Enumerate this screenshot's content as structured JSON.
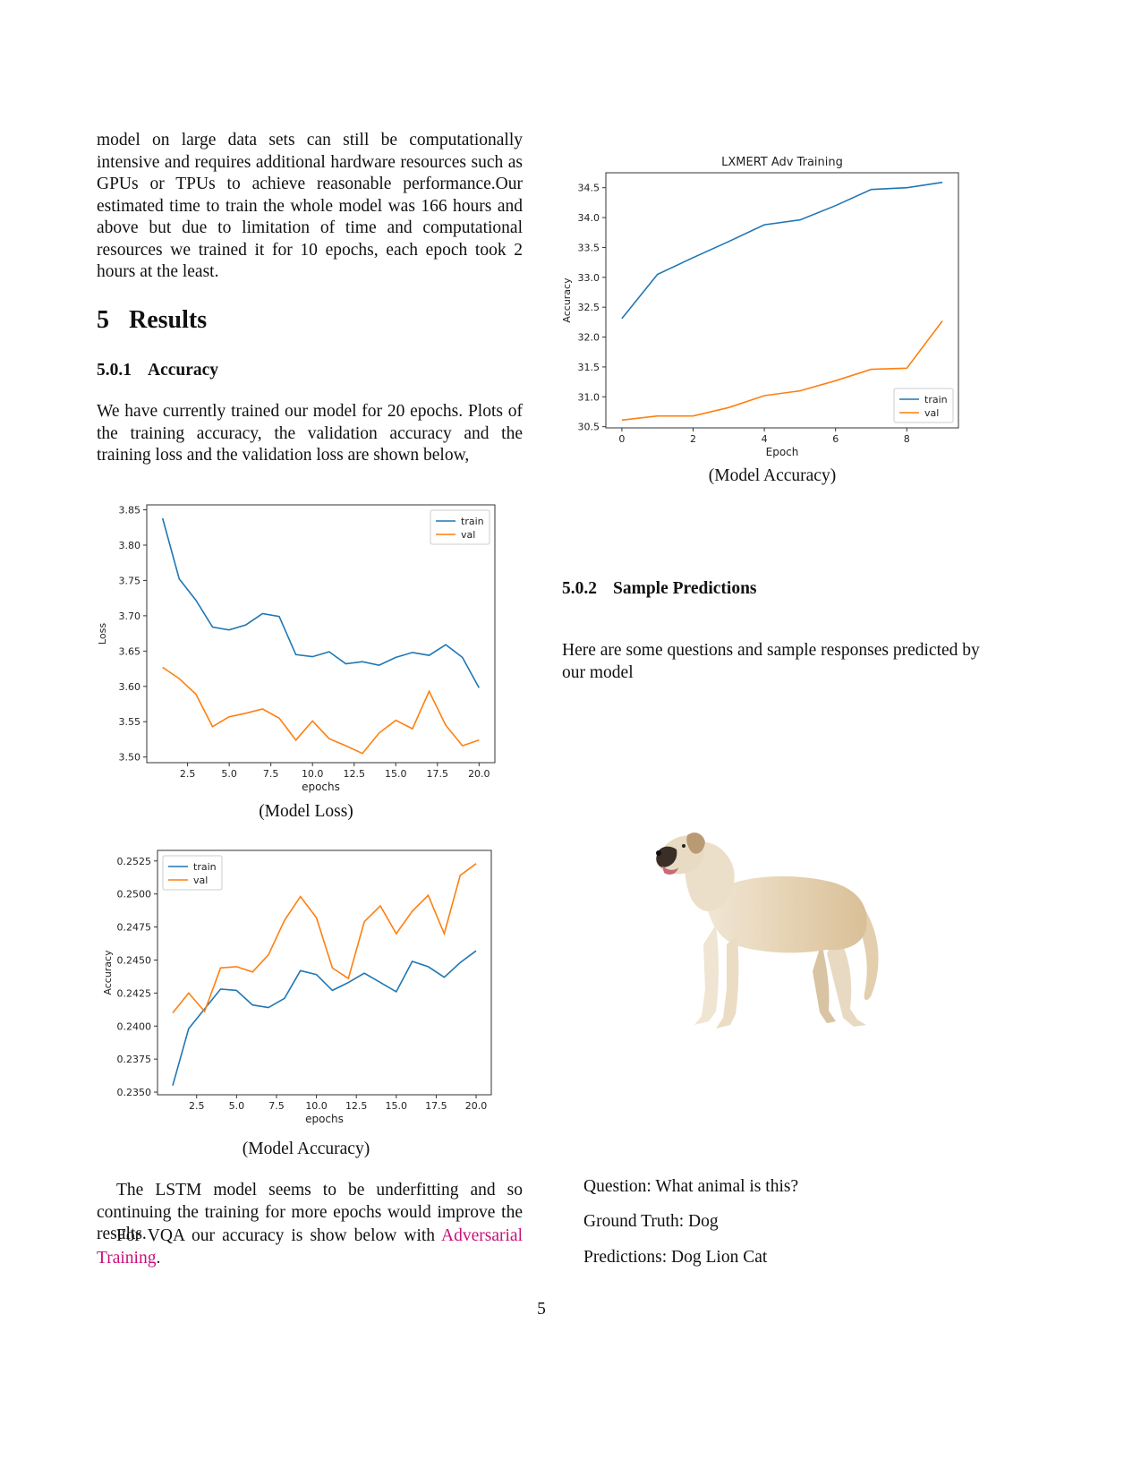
{
  "left": {
    "intro": "model on large data sets can still be computationally intensive and requires additional hardware resources such as GPUs or TPUs to achieve reasonable performance.Our estimated time to train the whole model was 166 hours and above but due to limitation of time and computational resources we trained it for 10 epochs, each epoch took 2 hours at the least.",
    "section_num": "5",
    "section_title": "Results",
    "sub1_num": "5.0.1",
    "sub1_title": "Accuracy",
    "p1": "We have currently trained our model for 20 epochs. Plots of the training accuracy, the validation accuracy and the training loss and the validation loss are shown below,",
    "cap_loss": "(Model Loss)",
    "cap_acc": "(Model Accuracy)",
    "p2": "The LSTM model seems to be underfitting and so continuing the training for more epochs would improve the results.",
    "p3_pre": "For VQA our accuracy is show below with ",
    "p3_link": "Adversarial Training",
    "p3_post": "."
  },
  "right": {
    "cap_lx": "(Model Accuracy)",
    "sub2_num": "5.0.2",
    "sub2_title": "Sample Predictions",
    "p4": "Here are some questions and sample responses predicted by our model",
    "question": "Question: What animal is this?",
    "ground_truth": "Ground Truth: Dog",
    "predictions": "Predictions: Dog Lion Cat"
  },
  "page_number": "5",
  "colors": {
    "train": "#1f77b4",
    "val": "#ff7f0e",
    "link": "#c8107a"
  },
  "chart_data": [
    {
      "id": "loss",
      "type": "line",
      "title": "",
      "xlabel": "epochs",
      "ylabel": "Loss",
      "xlim": [
        0.05,
        20.95
      ],
      "ylim": [
        3.492,
        3.857
      ],
      "xticks": [
        2.5,
        5.0,
        7.5,
        10.0,
        12.5,
        15.0,
        17.5,
        20.0
      ],
      "xtick_labels": [
        "2.5",
        "5.0",
        "7.5",
        "10.0",
        "12.5",
        "15.0",
        "17.5",
        "20.0"
      ],
      "yticks": [
        3.5,
        3.55,
        3.6,
        3.65,
        3.7,
        3.75,
        3.8,
        3.85
      ],
      "ytick_labels": [
        "3.50",
        "3.55",
        "3.60",
        "3.65",
        "3.70",
        "3.75",
        "3.80",
        "3.85"
      ],
      "legend": "upper right",
      "x": [
        1,
        2,
        3,
        4,
        5,
        6,
        7,
        8,
        9,
        10,
        11,
        12,
        13,
        14,
        15,
        16,
        17,
        18,
        19,
        20
      ],
      "series": [
        {
          "name": "train",
          "color": "#1f77b4",
          "values": [
            3.838,
            3.752,
            3.722,
            3.684,
            3.68,
            3.687,
            3.703,
            3.699,
            3.645,
            3.642,
            3.649,
            3.632,
            3.635,
            3.63,
            3.641,
            3.648,
            3.644,
            3.659,
            3.641,
            3.598
          ]
        },
        {
          "name": "val",
          "color": "#ff7f0e",
          "values": [
            3.627,
            3.611,
            3.589,
            3.543,
            3.557,
            3.562,
            3.568,
            3.555,
            3.524,
            3.551,
            3.526,
            3.516,
            3.505,
            3.534,
            3.552,
            3.54,
            3.593,
            3.545,
            3.516,
            3.524
          ]
        }
      ]
    },
    {
      "id": "acc",
      "type": "line",
      "title": "",
      "xlabel": "epochs",
      "ylabel": "Accuracy",
      "xlim": [
        0.05,
        20.95
      ],
      "ylim": [
        0.2348,
        0.2533
      ],
      "xticks": [
        2.5,
        5.0,
        7.5,
        10.0,
        12.5,
        15.0,
        17.5,
        20.0
      ],
      "xtick_labels": [
        "2.5",
        "5.0",
        "7.5",
        "10.0",
        "12.5",
        "15.0",
        "17.5",
        "20.0"
      ],
      "yticks": [
        0.235,
        0.2375,
        0.24,
        0.2425,
        0.245,
        0.2475,
        0.25,
        0.2525
      ],
      "ytick_labels": [
        "0.2350",
        "0.2375",
        "0.2400",
        "0.2425",
        "0.2450",
        "0.2475",
        "0.2500",
        "0.2525"
      ],
      "legend": "upper left",
      "x": [
        1,
        2,
        3,
        4,
        5,
        6,
        7,
        8,
        9,
        10,
        11,
        12,
        13,
        14,
        15,
        16,
        17,
        18,
        19,
        20
      ],
      "series": [
        {
          "name": "train",
          "color": "#1f77b4",
          "values": [
            0.2355,
            0.2398,
            0.2413,
            0.2428,
            0.2427,
            0.2416,
            0.2414,
            0.2421,
            0.2442,
            0.2439,
            0.2427,
            0.2433,
            0.244,
            0.2433,
            0.2426,
            0.2449,
            0.2445,
            0.2437,
            0.2448,
            0.2457
          ]
        },
        {
          "name": "val",
          "color": "#ff7f0e",
          "values": [
            0.241,
            0.2425,
            0.2411,
            0.2444,
            0.2445,
            0.2441,
            0.2454,
            0.248,
            0.2498,
            0.2482,
            0.2444,
            0.2436,
            0.2479,
            0.2491,
            0.247,
            0.2487,
            0.2499,
            0.247,
            0.2514,
            0.2523
          ]
        }
      ]
    },
    {
      "id": "lxmert",
      "type": "line",
      "title": "LXMERT Adv Training",
      "xlabel": "Epoch",
      "ylabel": "Accuracy",
      "xlim": [
        -0.45,
        9.45
      ],
      "ylim": [
        30.48,
        34.75
      ],
      "xticks": [
        0,
        2,
        4,
        6,
        8
      ],
      "xtick_labels": [
        "0",
        "2",
        "4",
        "6",
        "8"
      ],
      "yticks": [
        30.5,
        31.0,
        31.5,
        32.0,
        32.5,
        33.0,
        33.5,
        34.0,
        34.5
      ],
      "ytick_labels": [
        "30.5",
        "31.0",
        "31.5",
        "32.0",
        "32.5",
        "33.0",
        "33.5",
        "34.0",
        "34.5"
      ],
      "legend": "lower right",
      "x": [
        0,
        1,
        2,
        3,
        4,
        5,
        6,
        7,
        8,
        9
      ],
      "series": [
        {
          "name": "train",
          "color": "#1f77b4",
          "values": [
            32.31,
            33.05,
            33.33,
            33.6,
            33.88,
            33.96,
            34.2,
            34.47,
            34.5,
            34.59
          ]
        },
        {
          "name": "val",
          "color": "#ff7f0e",
          "values": [
            30.61,
            30.68,
            30.68,
            30.82,
            31.02,
            31.1,
            31.27,
            31.46,
            31.48,
            32.27
          ]
        }
      ]
    }
  ]
}
